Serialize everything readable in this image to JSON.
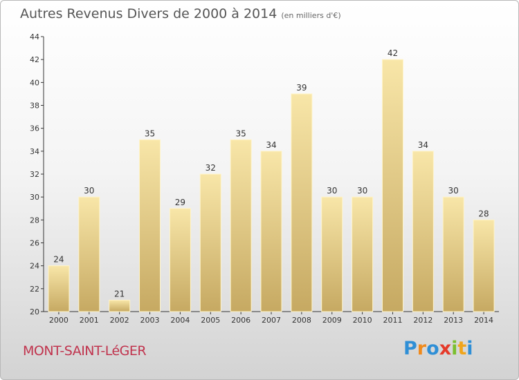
{
  "title": "Autres Revenus Divers de 2000 à 2014",
  "unit": "(en milliers d'€)",
  "location": "MONT-SAINT-LéGER",
  "brand": {
    "letters": [
      "P",
      "r",
      "o",
      "x",
      "i",
      "t",
      "i"
    ],
    "colors": [
      "#2f8fd6",
      "#f08a1c",
      "#2f8fd6",
      "#e53a2a",
      "#7bbf2f",
      "#f0a51c",
      "#2f8fd6"
    ]
  },
  "colors": {
    "bar_light": "#f7e3a2",
    "bar_dark": "#c9ad66",
    "location": "#c0334d"
  },
  "chart_data": {
    "type": "bar",
    "title": "Autres Revenus Divers de 2000 à 2014",
    "xlabel": "",
    "ylabel": "",
    "categories": [
      "2000",
      "2001",
      "2002",
      "2003",
      "2004",
      "2005",
      "2006",
      "2007",
      "2008",
      "2009",
      "2010",
      "2011",
      "2012",
      "2013",
      "2014"
    ],
    "values": [
      24,
      30,
      21,
      35,
      29,
      32,
      35,
      34,
      39,
      30,
      30,
      42,
      34,
      30,
      28
    ],
    "ylim": [
      20,
      44
    ],
    "yticks": [
      20,
      22,
      24,
      26,
      28,
      30,
      32,
      34,
      36,
      38,
      40,
      42,
      44
    ],
    "grid": false,
    "legend": "none"
  }
}
